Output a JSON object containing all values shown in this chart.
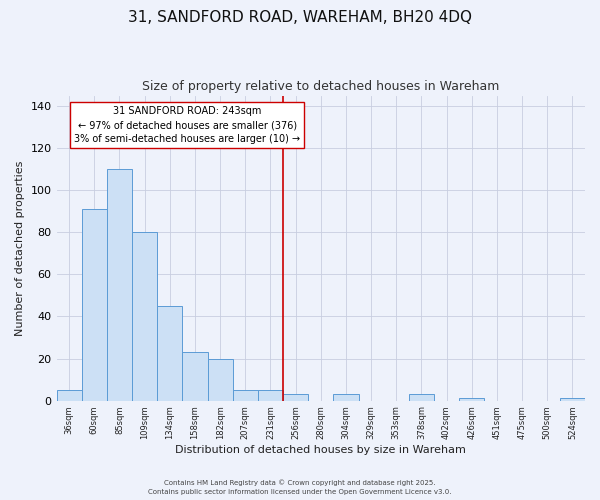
{
  "title": "31, SANDFORD ROAD, WAREHAM, BH20 4DQ",
  "subtitle": "Size of property relative to detached houses in Wareham",
  "xlabel": "Distribution of detached houses by size in Wareham",
  "ylabel": "Number of detached properties",
  "bar_labels": [
    "36sqm",
    "60sqm",
    "85sqm",
    "109sqm",
    "134sqm",
    "158sqm",
    "182sqm",
    "207sqm",
    "231sqm",
    "256sqm",
    "280sqm",
    "304sqm",
    "329sqm",
    "353sqm",
    "378sqm",
    "402sqm",
    "426sqm",
    "451sqm",
    "475sqm",
    "500sqm",
    "524sqm"
  ],
  "bar_values": [
    5,
    91,
    110,
    80,
    45,
    23,
    20,
    5,
    5,
    3,
    0,
    3,
    0,
    0,
    3,
    0,
    1,
    0,
    0,
    0,
    1
  ],
  "bar_color": "#cce0f5",
  "bar_edge_color": "#5b9bd5",
  "background_color": "#eef2fb",
  "grid_color": "#c8cee0",
  "vline_x": 8.5,
  "vline_color": "#cc0000",
  "annotation_title": "31 SANDFORD ROAD: 243sqm",
  "annotation_line1": "← 97% of detached houses are smaller (376)",
  "annotation_line2": "3% of semi-detached houses are larger (10) →",
  "annotation_box_color": "#ffffff",
  "annotation_border_color": "#cc0000",
  "ylim": [
    0,
    145
  ],
  "footer1": "Contains HM Land Registry data © Crown copyright and database right 2025.",
  "footer2": "Contains public sector information licensed under the Open Government Licence v3.0.",
  "title_fontsize": 11,
  "subtitle_fontsize": 9,
  "ylabel_fontsize": 8,
  "xlabel_fontsize": 8,
  "ann_fontsize": 7,
  "tick_fontsize": 6,
  "footer_fontsize": 5
}
